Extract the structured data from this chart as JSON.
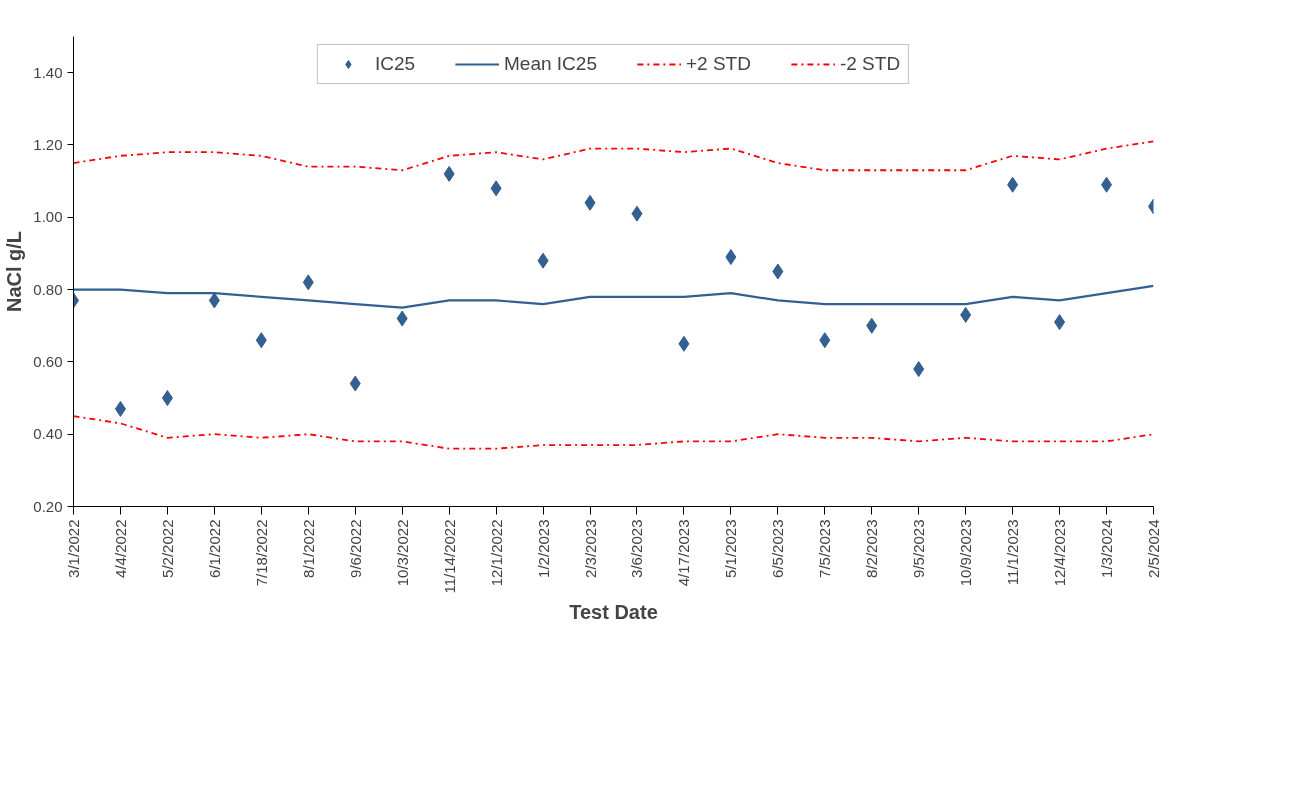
{
  "chart_data": {
    "type": "scatter",
    "xlabel": "Test Date",
    "ylabel": "NaCl g/L",
    "categories": [
      "3/1/2022",
      "4/4/2022",
      "5/2/2022",
      "6/1/2022",
      "7/18/2022",
      "8/1/2022",
      "9/6/2022",
      "10/3/2022",
      "11/14/2022",
      "12/1/2022",
      "1/2/2023",
      "2/3/2023",
      "3/6/2023",
      "4/17/2023",
      "5/1/2023",
      "6/5/2023",
      "7/5/2023",
      "8/2/2023",
      "9/5/2023",
      "10/9/2023",
      "11/1/2023",
      "12/4/2023",
      "1/3/2024",
      "2/5/2024"
    ],
    "series": [
      {
        "name": "IC25",
        "marker": "diamond",
        "color": "#335f91",
        "values": [
          0.77,
          0.47,
          0.5,
          0.77,
          0.66,
          0.82,
          0.54,
          0.72,
          1.12,
          1.08,
          0.88,
          1.04,
          1.01,
          0.65,
          0.89,
          0.85,
          0.66,
          0.7,
          0.58,
          0.73,
          1.09,
          0.71,
          1.09,
          1.03
        ]
      },
      {
        "name": "Mean IC25",
        "type": "line",
        "line_style": "solid",
        "color": "#335f91",
        "values": [
          0.8,
          0.8,
          0.79,
          0.79,
          0.78,
          0.77,
          0.76,
          0.75,
          0.77,
          0.77,
          0.76,
          0.78,
          0.78,
          0.78,
          0.79,
          0.77,
          0.76,
          0.76,
          0.76,
          0.76,
          0.78,
          0.77,
          0.79,
          0.81
        ]
      },
      {
        "name": "+2 STD",
        "type": "line",
        "line_style": "dashdot",
        "color": "#ff0000",
        "values": [
          1.15,
          1.17,
          1.18,
          1.18,
          1.17,
          1.14,
          1.14,
          1.13,
          1.17,
          1.18,
          1.16,
          1.19,
          1.19,
          1.18,
          1.19,
          1.15,
          1.13,
          1.13,
          1.13,
          1.13,
          1.17,
          1.16,
          1.19,
          1.21
        ]
      },
      {
        "name": "-2 STD",
        "type": "line",
        "line_style": "dashdot",
        "color": "#ff0000",
        "values": [
          0.45,
          0.43,
          0.39,
          0.4,
          0.39,
          0.4,
          0.38,
          0.38,
          0.36,
          0.36,
          0.37,
          0.37,
          0.37,
          0.38,
          0.38,
          0.4,
          0.39,
          0.39,
          0.38,
          0.39,
          0.38,
          0.38,
          0.38,
          0.4
        ]
      }
    ],
    "ylim": [
      0.2,
      1.5
    ],
    "yticks": [
      {
        "value": 0.2,
        "label": "0.20"
      },
      {
        "value": 0.4,
        "label": "0.40"
      },
      {
        "value": 0.6,
        "label": "0.60"
      },
      {
        "value": 0.8,
        "label": "0.80"
      },
      {
        "value": 1.0,
        "label": "1.00"
      },
      {
        "value": 1.2,
        "label": "1.20"
      },
      {
        "value": 1.4,
        "label": "1.40"
      }
    ],
    "grid": false,
    "legend": "top"
  }
}
